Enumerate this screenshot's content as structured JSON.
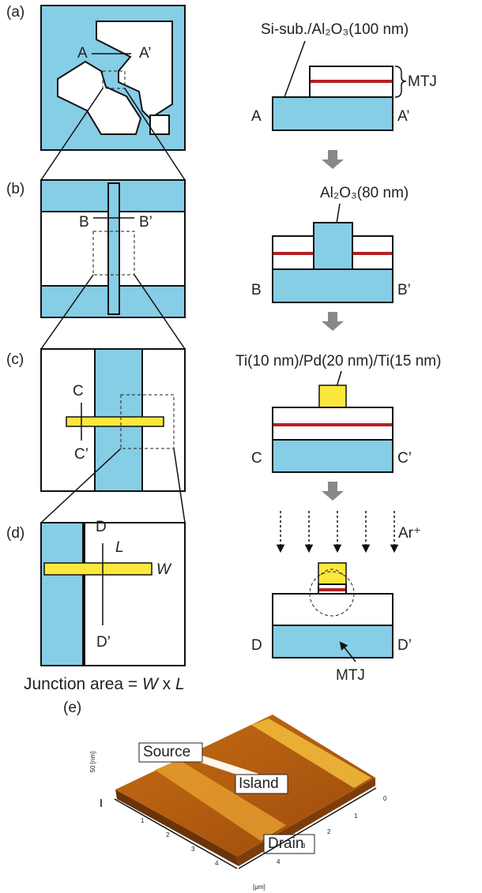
{
  "panels": [
    {
      "label": "(a)",
      "cut": [
        "A",
        "A’"
      ],
      "section": [
        "A",
        "A’"
      ],
      "annotations": [
        "Si-sub./Al₂O₃(100 nm)",
        "MTJ"
      ]
    },
    {
      "label": "(b)",
      "cut": [
        "B",
        "B’"
      ],
      "section": [
        "B",
        "B’"
      ],
      "annotations": [
        "Al₂O₃(80 nm)"
      ]
    },
    {
      "label": "(c)",
      "cut": [
        "C",
        "C’"
      ],
      "section": [
        "C",
        "C’"
      ],
      "annotations": [
        "Ti(10 nm)/Pd(20 nm)/Ti(15 nm)"
      ]
    },
    {
      "label": "(d)",
      "cut": [
        "D",
        "D’"
      ],
      "section": [
        "D",
        "D’"
      ],
      "annotations": [
        "Ar⁺",
        "MTJ"
      ],
      "dims": [
        "L",
        "W"
      ]
    }
  ],
  "junction_area": [
    "Junction area = ",
    "W",
    " x ",
    "L"
  ],
  "afm": {
    "label": "(e)",
    "regions": [
      "Source",
      "Island",
      "Drain"
    ],
    "z_axis": "50 [nm]",
    "unit": "[μm]",
    "left_ticks": [
      "1",
      "2",
      "3",
      "4"
    ],
    "right_ticks": [
      "0",
      "1",
      "2",
      "3",
      "4"
    ]
  }
}
